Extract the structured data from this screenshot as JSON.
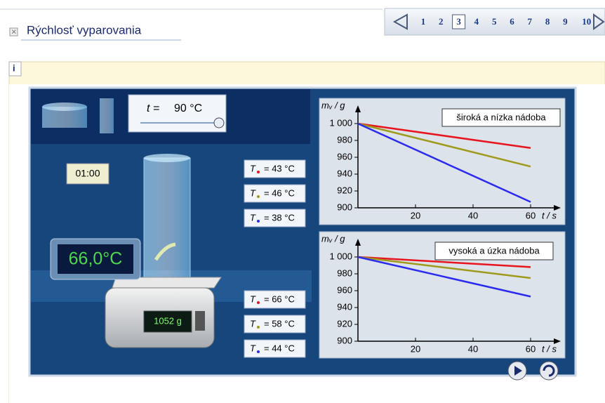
{
  "header": {
    "title": "Rýchlosť vyparovania"
  },
  "pagination": {
    "pages": [
      1,
      2,
      3,
      4,
      5,
      6,
      7,
      8,
      9,
      10
    ],
    "current": 3
  },
  "simulation": {
    "time_symbol": "t =",
    "temperature": "90 °C",
    "timer": "01:00",
    "thermometer": "66,0°C",
    "scale": "1052 g",
    "upper_temperatures": [
      {
        "symbol": "T",
        "text": "= 43 °C",
        "color": "#e8141e"
      },
      {
        "symbol": "T",
        "text": "= 46 °C",
        "color": "#a09a1c"
      },
      {
        "symbol": "T",
        "text": "= 38 °C",
        "color": "#2b2bf0"
      }
    ],
    "lower_temperatures": [
      {
        "symbol": "T",
        "text": "= 66 °C",
        "color": "#e8141e"
      },
      {
        "symbol": "T",
        "text": "= 58 °C",
        "color": "#a09a1c"
      },
      {
        "symbol": "T",
        "text": "= 44 °C",
        "color": "#2b2bf0"
      }
    ]
  },
  "chart_data": [
    {
      "type": "line",
      "legend_title": "široká a nízka nádoba",
      "y_label": "mᵥ / g",
      "x_label": "t / s",
      "x": [
        0,
        60
      ],
      "xlim": [
        0,
        70
      ],
      "xticks": [
        20,
        40,
        60
      ],
      "ylim": [
        900,
        1020
      ],
      "yticks": [
        900,
        920,
        940,
        960,
        980,
        {
          "value": 1000,
          "label": "1 000"
        }
      ],
      "series": [
        {
          "color": "#e8141e",
          "values": [
            1000,
            971
          ]
        },
        {
          "color": "#a09a1c",
          "values": [
            1000,
            949
          ]
        },
        {
          "color": "#2b2bf0",
          "values": [
            1000,
            907
          ]
        }
      ]
    },
    {
      "type": "line",
      "legend_title": "vysoká a úzka nádoba",
      "y_label": "mᵥ / g",
      "x_label": "t / s",
      "x": [
        0,
        60
      ],
      "xlim": [
        0,
        70
      ],
      "xticks": [
        20,
        40,
        60
      ],
      "ylim": [
        900,
        1020
      ],
      "yticks": [
        900,
        920,
        940,
        960,
        980,
        {
          "value": 1000,
          "label": "1 000"
        }
      ],
      "series": [
        {
          "color": "#e8141e",
          "values": [
            1000,
            988
          ]
        },
        {
          "color": "#a09a1c",
          "values": [
            1000,
            975
          ]
        },
        {
          "color": "#2b2bf0",
          "values": [
            1000,
            953
          ]
        }
      ]
    }
  ]
}
